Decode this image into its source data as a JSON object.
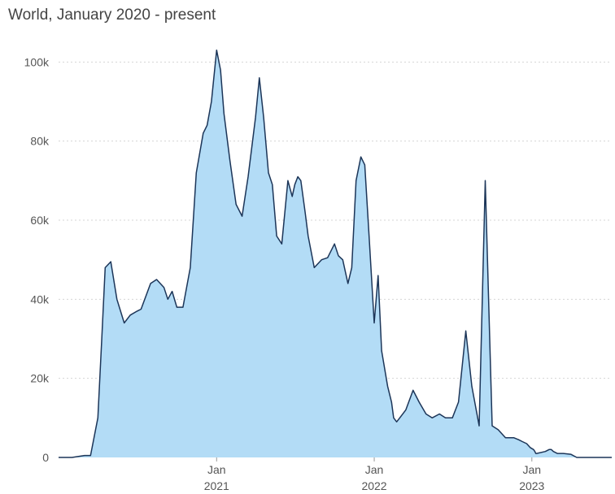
{
  "header": {
    "title": "World, January 2020 - present"
  },
  "colors": {
    "fill": "#b3dcf6",
    "line": "#1c3558",
    "grid": "#d5d5d5"
  },
  "chart_data": {
    "type": "area",
    "title": "World, January 2020 - present",
    "xlabel": "",
    "ylabel": "",
    "ylim": [
      0,
      105000
    ],
    "xlim": [
      "2020-01-01",
      "2023-07-05"
    ],
    "grid": true,
    "y_ticks": [
      {
        "value": 0,
        "label": "0"
      },
      {
        "value": 20000,
        "label": "20k"
      },
      {
        "value": 40000,
        "label": "40k"
      },
      {
        "value": 60000,
        "label": "60k"
      },
      {
        "value": 80000,
        "label": "80k"
      },
      {
        "value": 100000,
        "label": "100k"
      }
    ],
    "x_ticks": [
      {
        "date": "2021-01-01",
        "line1": "Jan",
        "line2": "2021"
      },
      {
        "date": "2022-01-01",
        "line1": "Jan",
        "line2": "2022"
      },
      {
        "date": "2023-01-01",
        "line1": "Jan",
        "line2": "2023"
      }
    ],
    "series": [
      {
        "x": [
          "2020-01-01",
          "2020-02-01",
          "2020-03-01",
          "2020-03-15",
          "2020-04-01",
          "2020-04-10",
          "2020-04-18",
          "2020-05-01",
          "2020-05-15",
          "2020-06-01",
          "2020-06-15",
          "2020-07-01",
          "2020-07-10",
          "2020-08-01",
          "2020-08-15",
          "2020-09-01",
          "2020-09-10",
          "2020-09-20",
          "2020-10-01",
          "2020-10-15",
          "2020-11-01",
          "2020-11-15",
          "2020-12-01",
          "2020-12-10",
          "2020-12-20",
          "2021-01-01",
          "2021-01-10",
          "2021-01-18",
          "2021-02-01",
          "2021-02-15",
          "2021-03-01",
          "2021-03-15",
          "2021-04-01",
          "2021-04-10",
          "2021-04-20",
          "2021-05-01",
          "2021-05-10",
          "2021-05-20",
          "2021-06-01",
          "2021-06-15",
          "2021-06-25",
          "2021-07-01",
          "2021-07-08",
          "2021-07-15",
          "2021-07-25",
          "2021-08-01",
          "2021-08-15",
          "2021-09-01",
          "2021-09-15",
          "2021-10-01",
          "2021-10-10",
          "2021-10-20",
          "2021-11-01",
          "2021-11-10",
          "2021-11-20",
          "2021-12-01",
          "2021-12-10",
          "2021-12-20",
          "2022-01-01",
          "2022-01-10",
          "2022-01-18",
          "2022-02-01",
          "2022-02-10",
          "2022-02-15",
          "2022-02-22",
          "2022-03-01",
          "2022-03-15",
          "2022-04-01",
          "2022-04-15",
          "2022-05-01",
          "2022-05-15",
          "2022-06-01",
          "2022-06-15",
          "2022-07-01",
          "2022-07-15",
          "2022-08-01",
          "2022-08-15",
          "2022-09-01",
          "2022-09-15",
          "2022-10-01",
          "2022-10-15",
          "2022-11-01",
          "2022-11-10",
          "2022-11-20",
          "2022-12-01",
          "2022-12-10",
          "2022-12-20",
          "2022-12-28",
          "2023-01-05",
          "2023-01-08",
          "2023-01-10",
          "2023-01-12",
          "2023-02-01",
          "2023-02-10",
          "2023-02-15",
          "2023-02-20",
          "2023-03-01",
          "2023-03-15",
          "2023-04-01",
          "2023-04-15",
          "2023-05-01",
          "2023-05-15",
          "2023-06-01",
          "2023-06-15",
          "2023-07-01",
          "2023-07-05"
        ],
        "values": [
          0,
          0,
          500,
          500,
          10000,
          30000,
          48000,
          49500,
          40000,
          34000,
          36000,
          37000,
          37500,
          44000,
          45000,
          43000,
          40000,
          42000,
          38000,
          38000,
          48000,
          72000,
          82000,
          84000,
          90000,
          103000,
          98000,
          87000,
          75000,
          64000,
          61000,
          71000,
          86000,
          96000,
          86000,
          72000,
          69000,
          56000,
          54000,
          70000,
          66000,
          69000,
          71000,
          70000,
          62000,
          56000,
          48000,
          50000,
          50500,
          54000,
          51000,
          50000,
          44000,
          48000,
          70000,
          76000,
          74000,
          56000,
          34000,
          46000,
          27000,
          18000,
          14000,
          10000,
          9000,
          10000,
          12000,
          17000,
          14000,
          11000,
          10000,
          11000,
          10000,
          10000,
          14000,
          32000,
          18000,
          8000,
          70000,
          8000,
          7000,
          5000,
          5000,
          5000,
          4500,
          4000,
          3500,
          2500,
          2000,
          1500,
          1000,
          1000,
          1500,
          2000,
          2000,
          1500,
          1000,
          1000,
          800,
          0,
          0,
          0,
          0,
          0,
          0,
          0
        ]
      }
    ]
  }
}
